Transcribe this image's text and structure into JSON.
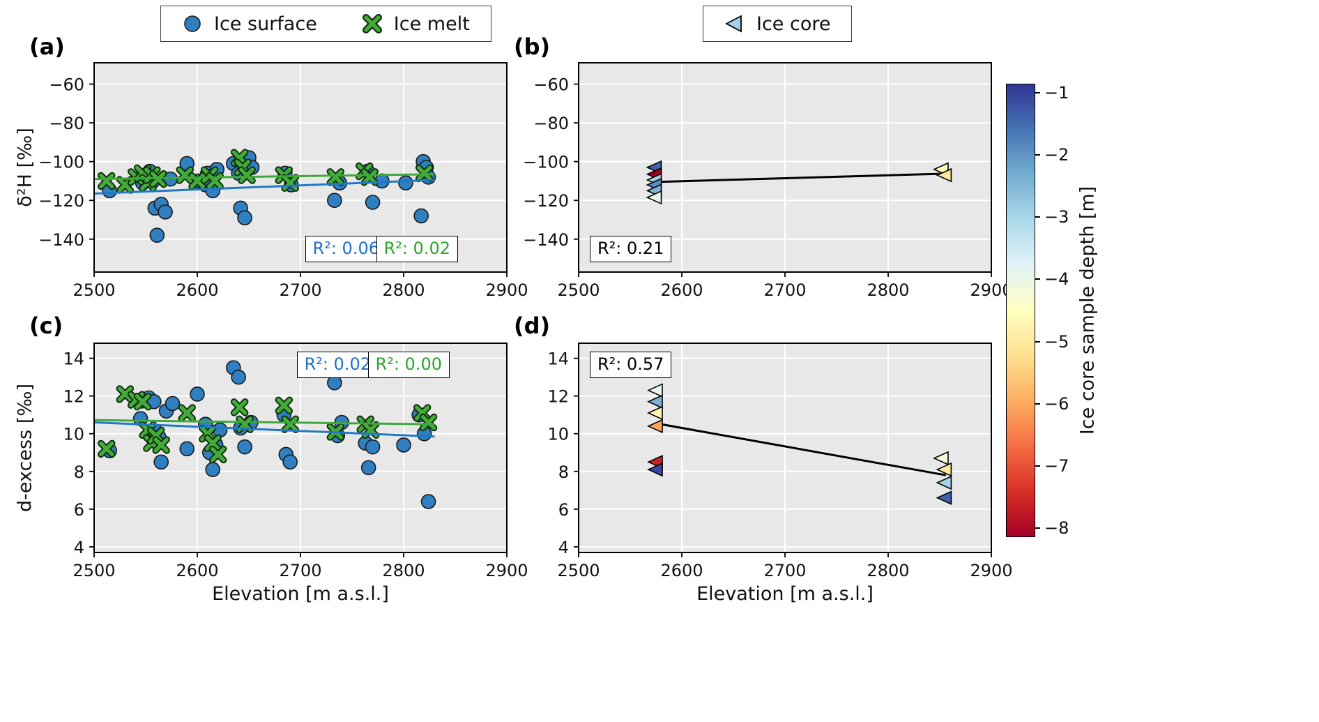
{
  "figure": {
    "background": "#ffffff",
    "panel_background": "#e8e8e8",
    "grid_color": "#ffffff",
    "frame_color": "#000000"
  },
  "legend_left": {
    "items": [
      {
        "label": "Ice surface",
        "marker": "circle",
        "color": "#2f7fc1"
      },
      {
        "label": "Ice melt",
        "marker": "x",
        "color": "#44ab3b"
      }
    ]
  },
  "legend_right": {
    "items": [
      {
        "label": "Ice core",
        "marker": "triangle-left",
        "color": "#a8cfe8"
      }
    ]
  },
  "colorbar": {
    "label": "Ice core sample depth [m]",
    "ticks": [
      -1,
      -2,
      -3,
      -4,
      -5,
      -6,
      -7,
      -8
    ],
    "vmax": -0.85,
    "vmin": -8.15,
    "stops_bottom_to_top": [
      "#a50026",
      "#d73027",
      "#f46d43",
      "#fdae61",
      "#fee090",
      "#ffffbf",
      "#e0f3f8",
      "#abd9e9",
      "#74add1",
      "#4575b4",
      "#313695"
    ]
  },
  "chart_data": [
    {
      "id": "a",
      "letter": "(a)",
      "type": "scatter",
      "xlim": [
        2500,
        2900
      ],
      "ylim": [
        -157,
        -49
      ],
      "xticks": [
        2500,
        2600,
        2700,
        2800,
        2900
      ],
      "yticks": [
        -60,
        -80,
        -100,
        -120,
        -140
      ],
      "xlabel": "",
      "ylabel": "δ²H [‰]",
      "grid": true,
      "series": [
        {
          "name": "Ice surface",
          "marker": "circle",
          "color": "#2f7fc1",
          "points": [
            [
              2515,
              -115
            ],
            [
              2547,
              -111
            ],
            [
              2554,
              -105
            ],
            [
              2557,
              -110
            ],
            [
              2559,
              -124
            ],
            [
              2561,
              -138
            ],
            [
              2565,
              -122
            ],
            [
              2569,
              -126
            ],
            [
              2574,
              -109
            ],
            [
              2590,
              -101
            ],
            [
              2601,
              -110
            ],
            [
              2608,
              -112
            ],
            [
              2610,
              -106
            ],
            [
              2615,
              -115
            ],
            [
              2619,
              -104
            ],
            [
              2635,
              -101
            ],
            [
              2640,
              -106
            ],
            [
              2642,
              -124
            ],
            [
              2646,
              -129
            ],
            [
              2650,
              -98
            ],
            [
              2653,
              -103
            ],
            [
              2685,
              -106
            ],
            [
              2691,
              -112
            ],
            [
              2733,
              -120
            ],
            [
              2738,
              -111
            ],
            [
              2765,
              -105
            ],
            [
              2770,
              -121
            ],
            [
              2779,
              -110
            ],
            [
              2802,
              -111
            ],
            [
              2817,
              -128
            ],
            [
              2819,
              -100
            ],
            [
              2822,
              -103
            ],
            [
              2824,
              -108
            ]
          ]
        },
        {
          "name": "Ice melt",
          "marker": "x",
          "color": "#44ab3b",
          "points": [
            [
              2512,
              -110
            ],
            [
              2530,
              -112
            ],
            [
              2541,
              -108
            ],
            [
              2547,
              -106
            ],
            [
              2552,
              -111
            ],
            [
              2556,
              -107
            ],
            [
              2562,
              -109
            ],
            [
              2588,
              -107
            ],
            [
              2600,
              -110
            ],
            [
              2612,
              -107
            ],
            [
              2617,
              -110
            ],
            [
              2641,
              -98
            ],
            [
              2644,
              -103
            ],
            [
              2648,
              -107
            ],
            [
              2684,
              -107
            ],
            [
              2690,
              -111
            ],
            [
              2734,
              -108
            ],
            [
              2762,
              -105
            ],
            [
              2767,
              -108
            ],
            [
              2820,
              -106
            ]
          ]
        }
      ],
      "trends": [
        {
          "color": "#2079c7",
          "x": [
            2500,
            2830
          ],
          "y": [
            -116.5,
            -109.5
          ]
        },
        {
          "color": "#3fa83a",
          "x": [
            2500,
            2830
          ],
          "y": [
            -109.0,
            -106.5
          ]
        }
      ],
      "annotations": [
        {
          "text": "R²: 0.06",
          "color": "#2171c7"
        },
        {
          "text": "R²: 0.02",
          "color": "#2ca62c"
        }
      ]
    },
    {
      "id": "b",
      "letter": "(b)",
      "type": "scatter",
      "xlim": [
        2500,
        2900
      ],
      "ylim": [
        -157,
        -49
      ],
      "xticks": [
        2500,
        2600,
        2700,
        2800,
        2900
      ],
      "yticks": [
        -60,
        -80,
        -100,
        -120,
        -140
      ],
      "xlabel": "",
      "ylabel": "",
      "grid": true,
      "series": [
        {
          "name": "Ice core",
          "marker": "triangle-left",
          "color_by": "depth",
          "points": [
            [
              2574,
              -103,
              -1.5
            ],
            [
              2574,
              -106.5,
              -8
            ],
            [
              2574,
              -109.5,
              -3
            ],
            [
              2574,
              -112,
              -2
            ],
            [
              2574,
              -115,
              -2.5
            ],
            [
              2574,
              -118.5,
              -4
            ],
            [
              2852,
              -104,
              -4.5
            ],
            [
              2855,
              -107,
              -5
            ]
          ]
        }
      ],
      "trends": [
        {
          "color": "#000000",
          "x": [
            2574,
            2856
          ],
          "y": [
            -110.5,
            -106.2
          ]
        }
      ],
      "annotations": [
        {
          "text": "R²: 0.21",
          "color": "#000000"
        }
      ]
    },
    {
      "id": "c",
      "letter": "(c)",
      "type": "scatter",
      "xlim": [
        2500,
        2900
      ],
      "ylim": [
        3.7,
        14.8
      ],
      "xticks": [
        2500,
        2600,
        2700,
        2800,
        2900
      ],
      "yticks": [
        4,
        6,
        8,
        10,
        12,
        14
      ],
      "xlabel": "Elevation [m a.s.l.]",
      "ylabel": "d-excess [‰]",
      "grid": true,
      "series": [
        {
          "name": "Ice surface",
          "marker": "circle",
          "color": "#2f7fc1",
          "points": [
            [
              2515,
              9.1
            ],
            [
              2545,
              10.8
            ],
            [
              2553,
              11.9
            ],
            [
              2558,
              11.7
            ],
            [
              2560,
              10.1
            ],
            [
              2563,
              9.8
            ],
            [
              2565,
              8.5
            ],
            [
              2570,
              11.2
            ],
            [
              2576,
              11.6
            ],
            [
              2590,
              9.2
            ],
            [
              2600,
              12.1
            ],
            [
              2608,
              10.5
            ],
            [
              2612,
              9.0
            ],
            [
              2615,
              8.1
            ],
            [
              2618,
              9.4
            ],
            [
              2622,
              10.2
            ],
            [
              2635,
              13.5
            ],
            [
              2640,
              13.0
            ],
            [
              2642,
              10.3
            ],
            [
              2646,
              9.3
            ],
            [
              2652,
              10.6
            ],
            [
              2684,
              11.0
            ],
            [
              2686,
              8.9
            ],
            [
              2690,
              8.5
            ],
            [
              2733,
              12.7
            ],
            [
              2736,
              9.9
            ],
            [
              2740,
              10.6
            ],
            [
              2763,
              9.5
            ],
            [
              2766,
              8.2
            ],
            [
              2770,
              9.3
            ],
            [
              2800,
              9.4
            ],
            [
              2815,
              11.0
            ],
            [
              2820,
              10.0
            ],
            [
              2824,
              6.4
            ]
          ]
        },
        {
          "name": "Ice melt",
          "marker": "x",
          "color": "#44ab3b",
          "points": [
            [
              2512,
              9.2
            ],
            [
              2530,
              12.1
            ],
            [
              2541,
              11.8
            ],
            [
              2547,
              11.7
            ],
            [
              2552,
              10.2
            ],
            [
              2556,
              9.5
            ],
            [
              2560,
              9.9
            ],
            [
              2565,
              9.4
            ],
            [
              2590,
              11.1
            ],
            [
              2610,
              10.0
            ],
            [
              2615,
              9.5
            ],
            [
              2620,
              8.9
            ],
            [
              2641,
              11.4
            ],
            [
              2646,
              10.5
            ],
            [
              2684,
              11.5
            ],
            [
              2690,
              10.5
            ],
            [
              2734,
              10.1
            ],
            [
              2763,
              10.5
            ],
            [
              2768,
              10.2
            ],
            [
              2818,
              11.1
            ],
            [
              2824,
              10.6
            ]
          ]
        }
      ],
      "trends": [
        {
          "color": "#2079c7",
          "x": [
            2500,
            2830
          ],
          "y": [
            10.6,
            9.85
          ]
        },
        {
          "color": "#3fa83a",
          "x": [
            2500,
            2830
          ],
          "y": [
            10.72,
            10.5
          ]
        }
      ],
      "annotations": [
        {
          "text": "R²: 0.02",
          "color": "#2171c7"
        },
        {
          "text": "R²: 0.00",
          "color": "#2ca62c"
        }
      ]
    },
    {
      "id": "d",
      "letter": "(d)",
      "type": "scatter",
      "xlim": [
        2500,
        2900
      ],
      "ylim": [
        3.7,
        14.8
      ],
      "xticks": [
        2500,
        2600,
        2700,
        2800,
        2900
      ],
      "yticks": [
        4,
        6,
        8,
        10,
        12,
        14
      ],
      "xlabel": "Elevation [m a.s.l.]",
      "ylabel": "",
      "grid": true,
      "series": [
        {
          "name": "Ice core",
          "marker": "triangle-left",
          "color_by": "depth",
          "points": [
            [
              2575,
              12.3,
              -4
            ],
            [
              2575,
              11.7,
              -2.5
            ],
            [
              2575,
              11.1,
              -4.7
            ],
            [
              2575,
              10.4,
              -6
            ],
            [
              2575,
              8.5,
              -7.5
            ],
            [
              2575,
              8.1,
              -1.2
            ],
            [
              2852,
              8.7,
              -4.2
            ],
            [
              2855,
              8.1,
              -5
            ],
            [
              2855,
              7.4,
              -3
            ],
            [
              2855,
              6.6,
              -1.5
            ]
          ]
        }
      ],
      "trends": [
        {
          "color": "#000000",
          "x": [
            2575,
            2856
          ],
          "y": [
            10.55,
            7.8
          ]
        }
      ],
      "annotations": [
        {
          "text": "R²: 0.57",
          "color": "#000000"
        }
      ]
    }
  ]
}
